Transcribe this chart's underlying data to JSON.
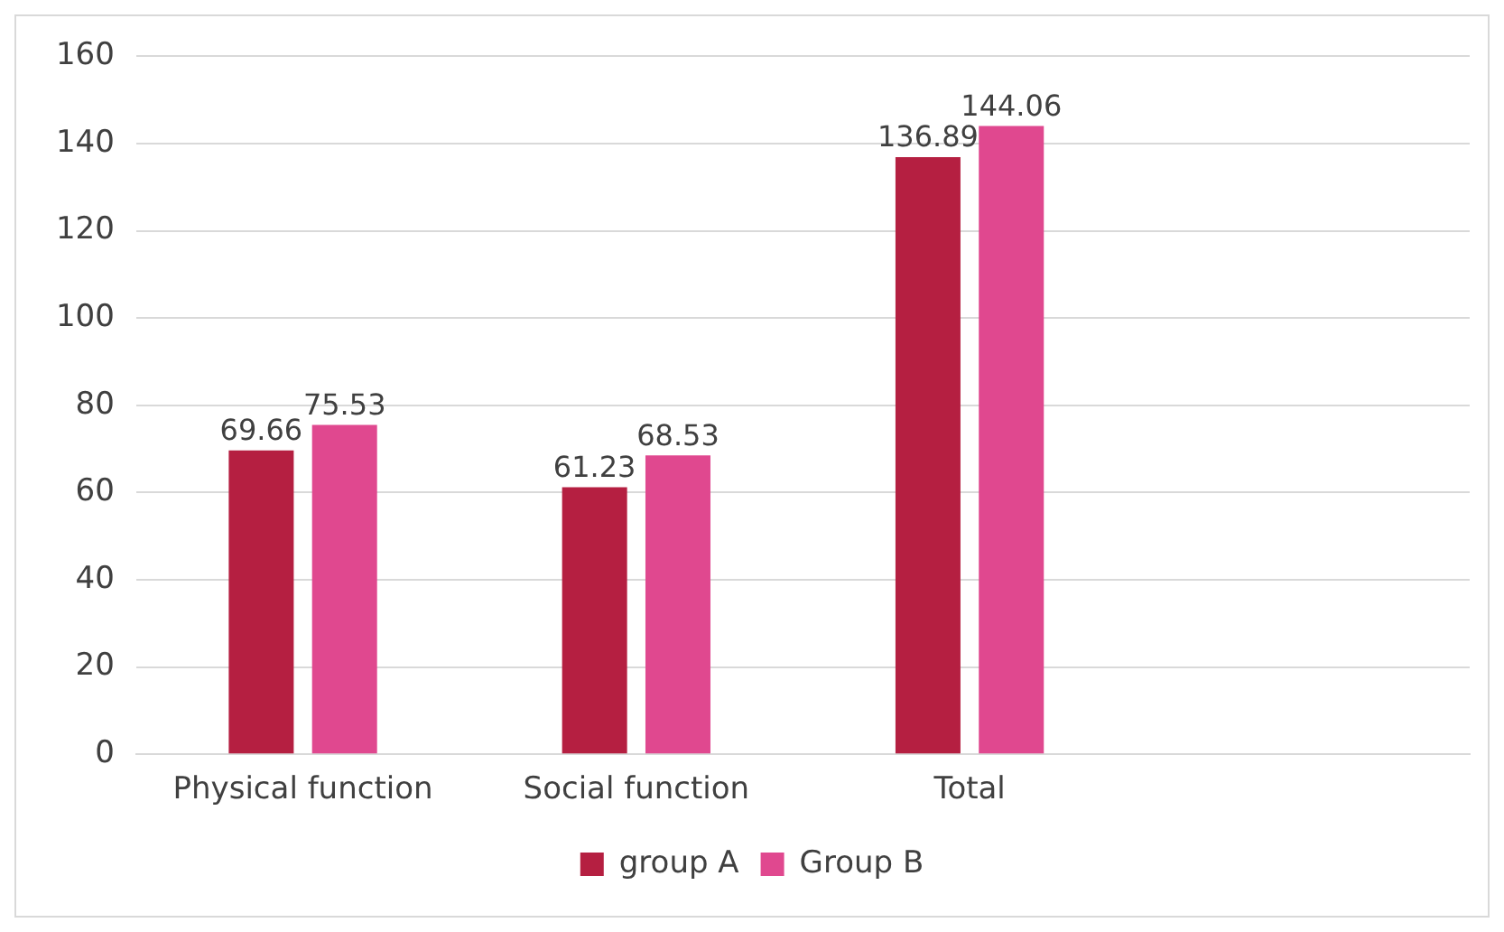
{
  "chart_data": {
    "type": "bar",
    "categories": [
      "Physical function",
      "Social function",
      "Total",
      null
    ],
    "series": [
      {
        "name": "group A",
        "color": "#b51f41",
        "values": [
          69.66,
          61.23,
          136.89,
          null
        ]
      },
      {
        "name": "Group B",
        "color": "#e0488f",
        "values": [
          75.53,
          68.53,
          144.06,
          null
        ]
      }
    ],
    "ylim": [
      0,
      160
    ],
    "yticks": [
      0,
      20,
      40,
      60,
      80,
      100,
      120,
      140,
      160
    ],
    "grid": "y",
    "legend": "bottom",
    "data_labels": true
  }
}
